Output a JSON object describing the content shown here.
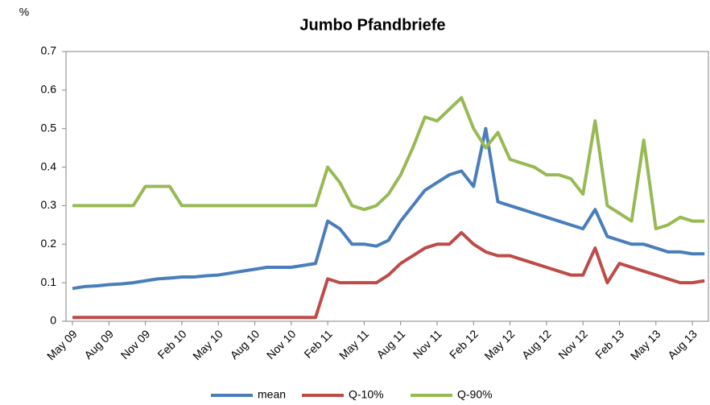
{
  "chart_data": {
    "type": "line",
    "title": "Jumbo Pfandbriefe",
    "y_label": "%",
    "x": [
      "May 09",
      null,
      null,
      "Aug 09",
      null,
      null,
      "Nov 09",
      null,
      null,
      "Feb 10",
      null,
      null,
      "May 10",
      null,
      null,
      "Aug 10",
      null,
      null,
      "Nov 10",
      null,
      null,
      "Feb 11",
      null,
      null,
      "May 11",
      null,
      null,
      "Aug 11",
      null,
      null,
      "Nov 11",
      null,
      null,
      "Feb 12",
      null,
      null,
      "May 12",
      null,
      null,
      "Aug 12",
      null,
      null,
      "Nov 12",
      null,
      null,
      "Feb 13",
      null,
      null,
      "May 13",
      null,
      null,
      "Aug 13",
      null
    ],
    "series": [
      {
        "name": "mean",
        "color": "#4a7ebb",
        "values": [
          0.085,
          0.09,
          0.092,
          0.095,
          0.097,
          0.1,
          0.105,
          0.11,
          0.112,
          0.115,
          0.115,
          0.118,
          0.12,
          0.125,
          0.13,
          0.135,
          0.14,
          0.14,
          0.14,
          0.145,
          0.15,
          0.26,
          0.24,
          0.2,
          0.2,
          0.195,
          0.21,
          0.26,
          0.3,
          0.34,
          0.36,
          0.38,
          0.39,
          0.35,
          0.5,
          0.31,
          0.3,
          0.29,
          0.28,
          0.27,
          0.26,
          0.25,
          0.24,
          0.29,
          0.22,
          0.21,
          0.2,
          0.2,
          0.19,
          0.18,
          0.18,
          0.175,
          0.175
        ]
      },
      {
        "name": "Q-10%",
        "color": "#be4b48",
        "values": [
          0.01,
          0.01,
          0.01,
          0.01,
          0.01,
          0.01,
          0.01,
          0.01,
          0.01,
          0.01,
          0.01,
          0.01,
          0.01,
          0.01,
          0.01,
          0.01,
          0.01,
          0.01,
          0.01,
          0.01,
          0.01,
          0.11,
          0.1,
          0.1,
          0.1,
          0.1,
          0.12,
          0.15,
          0.17,
          0.19,
          0.2,
          0.2,
          0.23,
          0.2,
          0.18,
          0.17,
          0.17,
          0.16,
          0.15,
          0.14,
          0.13,
          0.12,
          0.12,
          0.19,
          0.1,
          0.15,
          0.14,
          0.13,
          0.12,
          0.11,
          0.1,
          0.1,
          0.105
        ]
      },
      {
        "name": "Q-90%",
        "color": "#98b954",
        "values": [
          0.3,
          0.3,
          0.3,
          0.3,
          0.3,
          0.3,
          0.35,
          0.35,
          0.35,
          0.3,
          0.3,
          0.3,
          0.3,
          0.3,
          0.3,
          0.3,
          0.3,
          0.3,
          0.3,
          0.3,
          0.3,
          0.4,
          0.36,
          0.3,
          0.29,
          0.3,
          0.33,
          0.38,
          0.45,
          0.53,
          0.52,
          0.55,
          0.58,
          0.5,
          0.45,
          0.49,
          0.42,
          0.41,
          0.4,
          0.38,
          0.38,
          0.37,
          0.33,
          0.52,
          0.3,
          0.28,
          0.26,
          0.47,
          0.24,
          0.25,
          0.27,
          0.26,
          0.26
        ]
      }
    ],
    "ylim": [
      0,
      0.7
    ],
    "yticks": [
      0,
      0.1,
      0.2,
      0.3,
      0.4,
      0.5,
      0.6,
      0.7
    ],
    "grid": false,
    "legend": "bottom"
  }
}
